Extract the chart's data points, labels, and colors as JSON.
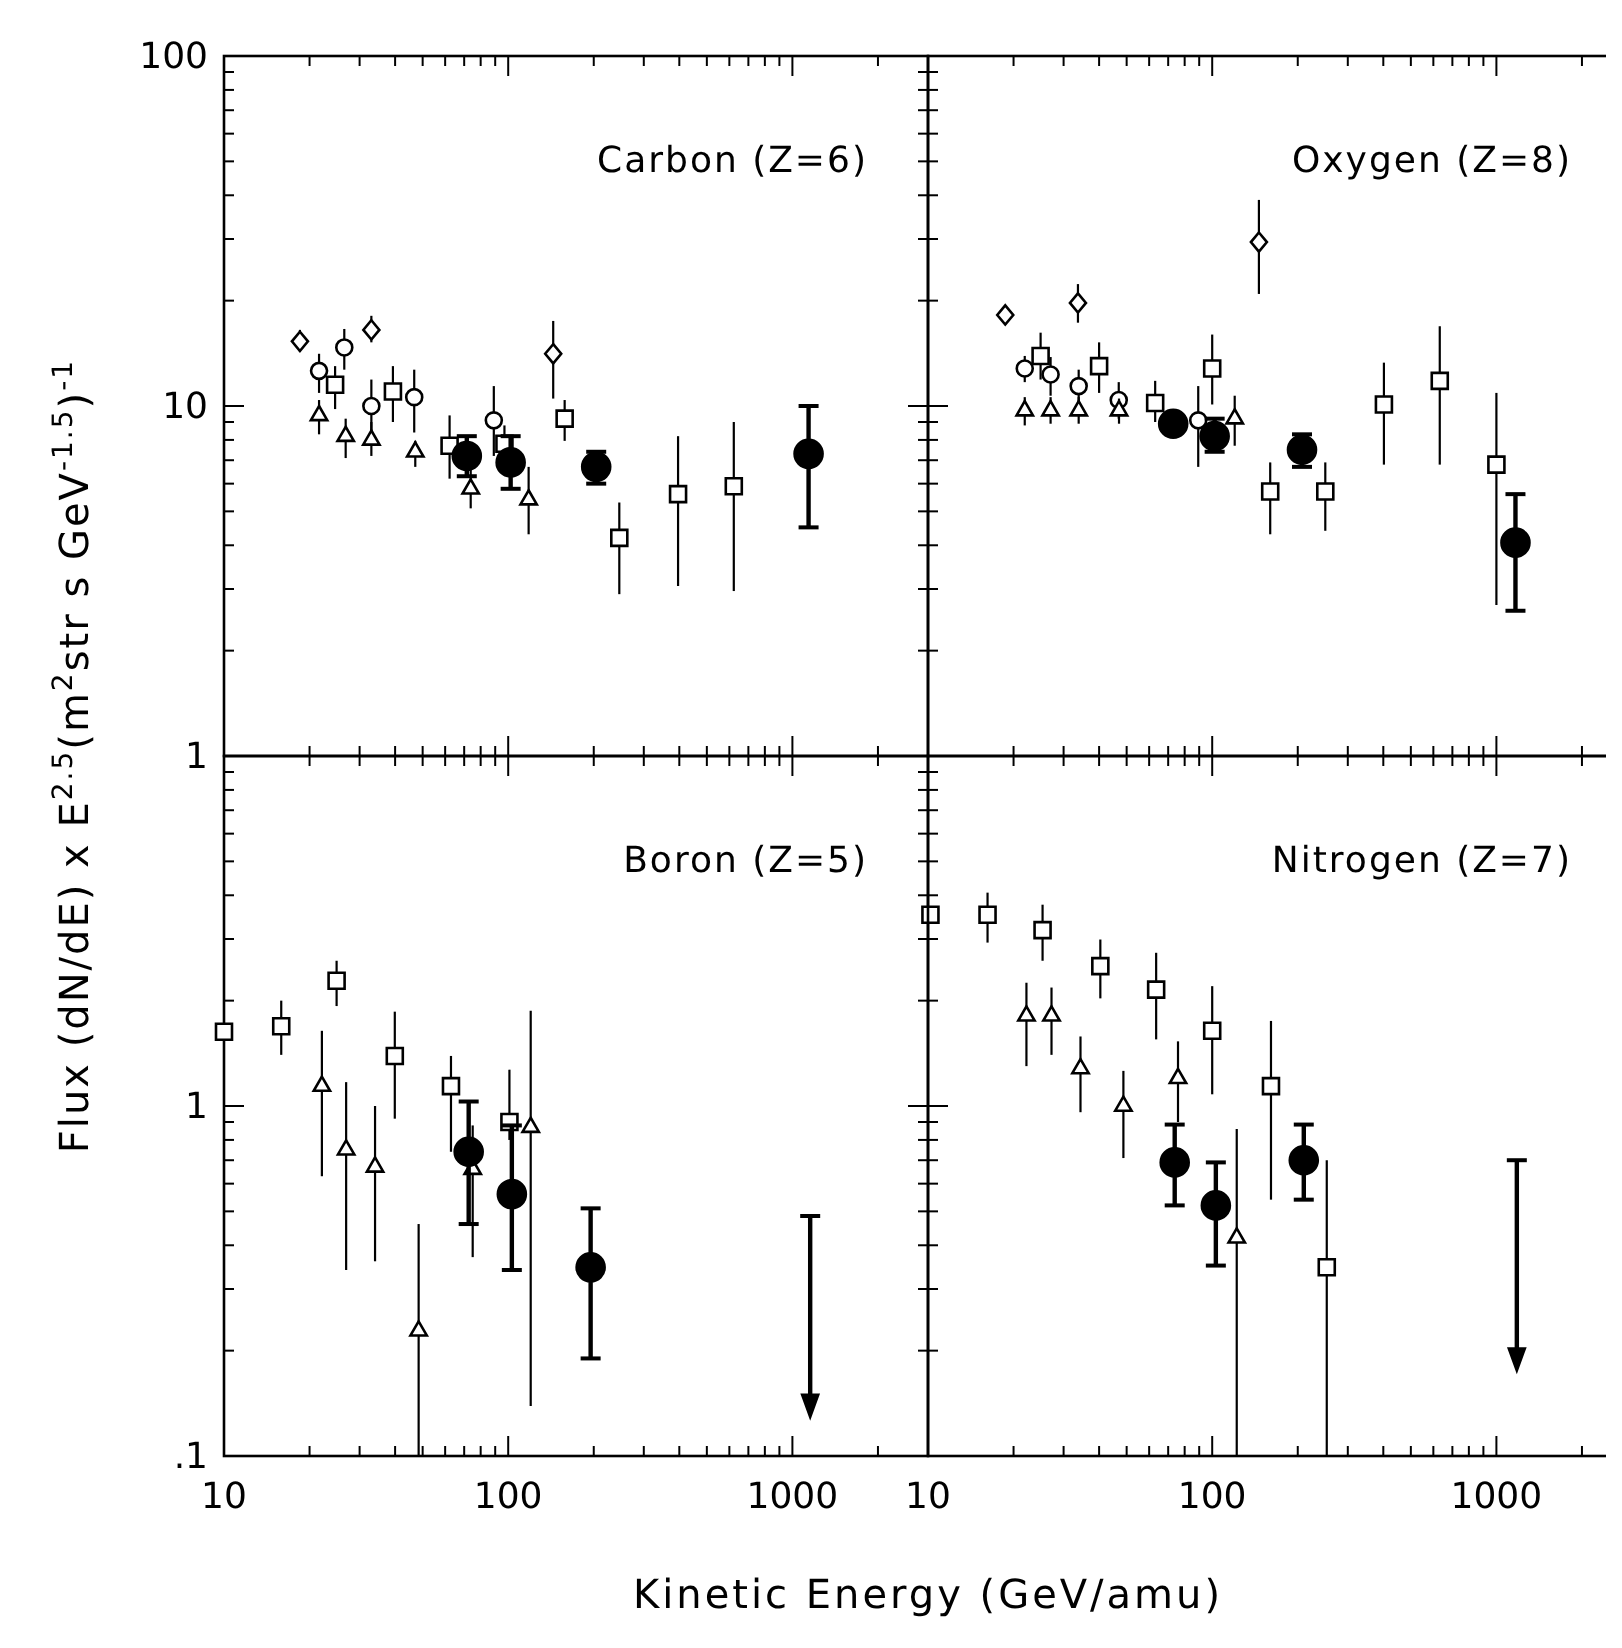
{
  "chart_data": [
    {
      "type": "scatter",
      "log": "xy",
      "title": "Carbon (Z=6)",
      "ylabel": "Flux (dN/dE) x E$^{2.5}$(m$^{2}$str s GeV$^{-1.5}$)$^{-1}$",
      "xlim": [
        10,
        3000
      ],
      "ylim": [
        1,
        100
      ],
      "tick_labels": "y",
      "xticks": [
        10,
        {
          "value": 20,
          "label": null
        },
        {
          "value": 30,
          "label": null
        },
        {
          "value": 40,
          "label": null
        },
        {
          "value": 50,
          "label": null
        },
        {
          "value": 60,
          "label": null
        },
        {
          "value": 70,
          "label": null
        },
        {
          "value": 80,
          "label": null
        },
        {
          "value": 90,
          "label": null
        },
        100,
        {
          "value": 200,
          "label": null
        },
        {
          "value": 300,
          "label": null
        },
        {
          "value": 400,
          "label": null
        },
        {
          "value": 500,
          "label": null
        },
        {
          "value": 600,
          "label": null
        },
        {
          "value": 700,
          "label": null
        },
        {
          "value": 800,
          "label": null
        },
        {
          "value": 900,
          "label": null
        },
        1000,
        {
          "value": 2000,
          "label": null
        }
      ],
      "yticks": [
        1,
        {
          "value": 2,
          "label": null
        },
        {
          "value": 3,
          "label": null
        },
        {
          "value": 4,
          "label": null
        },
        {
          "value": 5,
          "label": null
        },
        {
          "value": 6,
          "label": null
        },
        {
          "value": 7,
          "label": null
        },
        {
          "value": 8,
          "label": null
        },
        {
          "value": 9,
          "label": null
        },
        10,
        {
          "value": 20,
          "label": null
        },
        {
          "value": 30,
          "label": null
        },
        {
          "value": 40,
          "label": null
        },
        {
          "value": 50,
          "label": null
        },
        {
          "value": 60,
          "label": null
        },
        {
          "value": 70,
          "label": null
        },
        {
          "value": 80,
          "label": null
        },
        {
          "value": 90,
          "label": null
        },
        100
      ],
      "series": [
        {
          "color": "#000000",
          "marker": "diamond",
          "x": [
            18.5,
            33,
            144
          ],
          "values": [
            15.3,
            16.5,
            14.1
          ],
          "errors": [
            [
              14.3,
              16.5
            ],
            [
              15.2,
              18.1
            ],
            [
              10.5,
              17.5
            ]
          ]
        },
        {
          "color": "#000000",
          "marker": "circle",
          "x": [
            21.6,
            26.5,
            33,
            46.7,
            89
          ],
          "values": [
            12.6,
            14.7,
            10.0,
            10.6,
            9.1
          ],
          "errors": [
            [
              10.9,
              14.1
            ],
            [
              12.7,
              16.6
            ],
            [
              8.4,
              11.9
            ],
            [
              8.4,
              12.7
            ],
            [
              7.2,
              11.4
            ]
          ]
        },
        {
          "color": "#000000",
          "marker": "square",
          "x": [
            24.6,
            39.3,
            62.2,
            97,
            158,
            246,
            396,
            622
          ],
          "values": [
            11.5,
            11.0,
            7.7,
            7.8,
            9.2,
            4.2,
            5.6,
            5.9
          ],
          "errors": [
            [
              9.8,
              13.0
            ],
            [
              9.0,
              13.0
            ],
            [
              6.2,
              9.4
            ],
            [
              7.2,
              8.8
            ],
            [
              7.95,
              10.4
            ],
            [
              2.9,
              5.3
            ],
            [
              3.06,
              8.2
            ],
            [
              2.96,
              9.0
            ]
          ]
        },
        {
          "color": "#000000",
          "marker": "triangle",
          "x": [
            21.6,
            26.8,
            33,
            47.1,
            73.8,
            118
          ],
          "values": [
            9.4,
            8.2,
            8.0,
            7.4,
            5.8,
            5.4
          ],
          "errors": [
            [
              8.3,
              10.4
            ],
            [
              7.1,
              9.2
            ],
            [
              7.2,
              9.0
            ],
            [
              6.7,
              7.95
            ],
            [
              5.1,
              6.6
            ],
            [
              4.3,
              6.7
            ]
          ]
        },
        {
          "color": "#000000",
          "marker": "circle",
          "x": [
            71.5,
            102,
            204,
            1140
          ],
          "values": [
            7.2,
            6.9,
            6.7,
            7.3
          ],
          "errors": [
            [
              6.3,
              8.2
            ],
            [
              5.8,
              8.2
            ],
            [
              6.0,
              7.4
            ],
            [
              4.5,
              10.0
            ]
          ]
        }
      ]
    },
    {
      "type": "scatter",
      "log": "xy",
      "title": "Oxygen (Z=8)",
      "xlim": [
        10,
        3000
      ],
      "ylim": [
        1,
        100
      ],
      "tick_labels": false,
      "xticks": [
        10,
        {
          "value": 20,
          "label": null
        },
        {
          "value": 30,
          "label": null
        },
        {
          "value": 40,
          "label": null
        },
        {
          "value": 50,
          "label": null
        },
        {
          "value": 60,
          "label": null
        },
        {
          "value": 70,
          "label": null
        },
        {
          "value": 80,
          "label": null
        },
        {
          "value": 90,
          "label": null
        },
        100,
        {
          "value": 200,
          "label": null
        },
        {
          "value": 300,
          "label": null
        },
        {
          "value": 400,
          "label": null
        },
        {
          "value": 500,
          "label": null
        },
        {
          "value": 600,
          "label": null
        },
        {
          "value": 700,
          "label": null
        },
        {
          "value": 800,
          "label": null
        },
        {
          "value": 900,
          "label": null
        },
        1000,
        {
          "value": 2000,
          "label": null
        }
      ],
      "yticks": [
        1,
        {
          "value": 2,
          "label": null
        },
        {
          "value": 3,
          "label": null
        },
        {
          "value": 4,
          "label": null
        },
        {
          "value": 5,
          "label": null
        },
        {
          "value": 6,
          "label": null
        },
        {
          "value": 7,
          "label": null
        },
        {
          "value": 8,
          "label": null
        },
        {
          "value": 9,
          "label": null
        },
        10,
        {
          "value": 20,
          "label": null
        },
        {
          "value": 30,
          "label": null
        },
        {
          "value": 40,
          "label": null
        },
        {
          "value": 50,
          "label": null
        },
        {
          "value": 60,
          "label": null
        },
        {
          "value": 70,
          "label": null
        },
        {
          "value": 80,
          "label": null
        },
        {
          "value": 90,
          "label": null
        },
        100
      ],
      "series": [
        {
          "color": "#000000",
          "marker": "diamond",
          "x": [
            18.7,
            33.7,
            146
          ],
          "values": [
            18.2,
            19.7,
            29.4
          ],
          "errors": [
            [
              17.1,
              19.3
            ],
            [
              17.3,
              22.3
            ],
            [
              20.9,
              38.8
            ]
          ]
        },
        {
          "color": "#000000",
          "marker": "circle",
          "x": [
            21.9,
            27,
            33.9,
            46.9,
            89.3
          ],
          "values": [
            12.8,
            12.3,
            11.4,
            10.4,
            9.1
          ],
          "errors": [
            [
              11.7,
              13.9
            ],
            [
              10.7,
              13.8
            ],
            [
              10.0,
              12.7
            ],
            [
              9.2,
              11.7
            ],
            [
              6.7,
              11.4
            ]
          ]
        },
        {
          "color": "#000000",
          "marker": "square",
          "x": [
            24.9,
            40,
            63,
            100,
            160,
            250,
            402,
            632,
            1000
          ],
          "values": [
            13.9,
            13.0,
            10.2,
            12.8,
            5.7,
            5.7,
            10.1,
            11.8,
            6.8
          ],
          "errors": [
            [
              11.9,
              16.2
            ],
            [
              10.9,
              15.2
            ],
            [
              9.0,
              11.8
            ],
            [
              10.1,
              16.0
            ],
            [
              4.3,
              6.9
            ],
            [
              4.4,
              6.9
            ],
            [
              6.8,
              13.3
            ],
            [
              6.8,
              16.9
            ],
            [
              2.7,
              10.9
            ]
          ]
        },
        {
          "color": "#000000",
          "marker": "triangle",
          "x": [
            21.9,
            27,
            33.9,
            47,
            120
          ],
          "values": [
            9.7,
            9.7,
            9.7,
            9.7,
            9.2
          ],
          "errors": [
            [
              8.8,
              10.6
            ],
            [
              8.9,
              10.6
            ],
            [
              8.9,
              10.6
            ],
            [
              8.9,
              10.5
            ],
            [
              7.7,
              10.7
            ]
          ]
        },
        {
          "color": "#000000",
          "marker": "circle",
          "x": [
            72.9,
            102,
            207,
            1167
          ],
          "values": [
            8.9,
            8.2,
            7.5,
            4.07
          ],
          "errors": [
            null,
            [
              7.4,
              9.2
            ],
            [
              6.7,
              8.3
            ],
            [
              2.6,
              5.6
            ]
          ]
        }
      ]
    },
    {
      "type": "scatter",
      "log": "xy",
      "title": "Boron (Z=5)",
      "xlabel": "Kinetic Energy  (GeV/amu)",
      "xlim": [
        10,
        3000
      ],
      "ylim": [
        0.1,
        10
      ],
      "xticks": [
        10,
        {
          "value": 20,
          "label": null
        },
        {
          "value": 30,
          "label": null
        },
        {
          "value": 40,
          "label": null
        },
        {
          "value": 50,
          "label": null
        },
        {
          "value": 60,
          "label": null
        },
        {
          "value": 70,
          "label": null
        },
        {
          "value": 80,
          "label": null
        },
        {
          "value": 90,
          "label": null
        },
        100,
        {
          "value": 200,
          "label": null
        },
        {
          "value": 300,
          "label": null
        },
        {
          "value": 400,
          "label": null
        },
        {
          "value": 500,
          "label": null
        },
        {
          "value": 600,
          "label": null
        },
        {
          "value": 700,
          "label": null
        },
        {
          "value": 800,
          "label": null
        },
        {
          "value": 900,
          "label": null
        },
        1000,
        {
          "value": 2000,
          "label": null
        }
      ],
      "yticks": [
        {
          "value": 0.1,
          "label": ".1"
        },
        {
          "value": 0.2,
          "label": null
        },
        {
          "value": 0.3,
          "label": null
        },
        {
          "value": 0.4,
          "label": null
        },
        {
          "value": 0.5,
          "label": null
        },
        {
          "value": 0.6,
          "label": null
        },
        {
          "value": 0.7,
          "label": null
        },
        {
          "value": 0.8,
          "label": null
        },
        {
          "value": 0.9,
          "label": null
        },
        1,
        {
          "value": 2,
          "label": null
        },
        {
          "value": 3,
          "label": null
        },
        {
          "value": 4,
          "label": null
        },
        {
          "value": 5,
          "label": null
        },
        {
          "value": 6,
          "label": null
        },
        {
          "value": 7,
          "label": null
        },
        {
          "value": 8,
          "label": null
        },
        {
          "value": 9,
          "label": null
        },
        {
          "value": 10,
          "label": null
        }
      ],
      "series": [
        {
          "color": "#000000",
          "marker": "square",
          "x": [
            10,
            15.9,
            24.9,
            39.9,
            62.9,
            101
          ],
          "values": [
            1.63,
            1.69,
            2.28,
            1.39,
            1.14,
            0.9
          ],
          "errors": [
            null,
            [
              1.4,
              2.0
            ],
            [
              1.93,
              2.6
            ],
            [
              0.92,
              1.86
            ],
            [
              0.74,
              1.39
            ],
            [
              0.8,
              1.27
            ]
          ]
        },
        {
          "color": "#000000",
          "marker": "triangle",
          "x": [
            22.1,
            26.9,
            34,
            48.4,
            75,
            120
          ],
          "values": [
            1.14,
            0.75,
            0.67,
            0.228,
            0.66,
            0.87
          ],
          "errors": [
            [
              0.63,
              1.64
            ],
            [
              0.34,
              1.17
            ],
            [
              0.36,
              1.0
            ],
            [
              0.1,
              0.46
            ],
            [
              0.37,
              0.88
            ],
            [
              0.139,
              1.87
            ]
          ]
        },
        {
          "color": "#000000",
          "marker": "circle",
          "x": [
            72.6,
            103,
            195
          ],
          "values": [
            0.74,
            0.56,
            0.346
          ],
          "errors": [
            [
              0.46,
              1.03
            ],
            [
              0.34,
              0.88
            ],
            [
              0.19,
              0.51
            ]
          ]
        },
        {
          "color": "#000000",
          "marker": "triangle",
          "x": [
            1155
          ],
          "values": [
            0.14
          ],
          "errors": [
            [
              0.14,
              0.485
            ]
          ]
        }
      ]
    },
    {
      "type": "scatter",
      "log": "xy",
      "title": "Nitrogen (Z=7)",
      "xlim": [
        10,
        3000
      ],
      "ylim": [
        0.1,
        10
      ],
      "tick_labels": "x",
      "xticks": [
        10,
        {
          "value": 20,
          "label": null
        },
        {
          "value": 30,
          "label": null
        },
        {
          "value": 40,
          "label": null
        },
        {
          "value": 50,
          "label": null
        },
        {
          "value": 60,
          "label": null
        },
        {
          "value": 70,
          "label": null
        },
        {
          "value": 80,
          "label": null
        },
        {
          "value": 90,
          "label": null
        },
        100,
        {
          "value": 200,
          "label": null
        },
        {
          "value": 300,
          "label": null
        },
        {
          "value": 400,
          "label": null
        },
        {
          "value": 500,
          "label": null
        },
        {
          "value": 600,
          "label": null
        },
        {
          "value": 700,
          "label": null
        },
        {
          "value": 800,
          "label": null
        },
        {
          "value": 900,
          "label": null
        },
        1000,
        {
          "value": 2000,
          "label": null
        }
      ],
      "yticks": [
        {
          "value": 0.1,
          "label": null
        },
        {
          "value": 0.2,
          "label": null
        },
        {
          "value": 0.3,
          "label": null
        },
        {
          "value": 0.4,
          "label": null
        },
        {
          "value": 0.5,
          "label": null
        },
        {
          "value": 0.6,
          "label": null
        },
        {
          "value": 0.7,
          "label": null
        },
        {
          "value": 0.8,
          "label": null
        },
        {
          "value": 0.9,
          "label": null
        },
        {
          "value": 1,
          "label": null
        },
        {
          "value": 2,
          "label": null
        },
        {
          "value": 3,
          "label": null
        },
        {
          "value": 4,
          "label": null
        },
        {
          "value": 5,
          "label": null
        },
        {
          "value": 6,
          "label": null
        },
        {
          "value": 7,
          "label": null
        },
        {
          "value": 8,
          "label": null
        },
        {
          "value": 9,
          "label": null
        },
        {
          "value": 10,
          "label": null
        }
      ],
      "series": [
        {
          "color": "#000000",
          "marker": "square",
          "x": [
            10.2,
            16.2,
            25.3,
            40.4,
            63.5,
            100,
            161,
            253
          ],
          "values": [
            3.52,
            3.52,
            3.18,
            2.51,
            2.15,
            1.64,
            1.14,
            0.346
          ],
          "errors": [
            null,
            [
              2.93,
              4.07
            ],
            [
              2.6,
              3.76
            ],
            [
              2.03,
              2.99
            ],
            [
              1.55,
              2.74
            ],
            [
              1.08,
              2.2
            ],
            [
              0.54,
              1.75
            ],
            [
              0.1,
              0.7
            ]
          ]
        },
        {
          "color": "#000000",
          "marker": "triangle",
          "x": [
            22.2,
            27.2,
            34.4,
            48.7,
            75.8,
            122
          ],
          "values": [
            1.81,
            1.81,
            1.28,
            1.0,
            1.2,
            0.42
          ],
          "errors": [
            [
              1.3,
              2.25
            ],
            [
              1.4,
              2.18
            ],
            [
              0.96,
              1.58
            ],
            [
              0.71,
              1.26
            ],
            [
              0.9,
              1.53
            ],
            [
              0.1,
              0.86
            ]
          ]
        },
        {
          "color": "#000000",
          "marker": "circle",
          "x": [
            73.8,
            103,
            210
          ],
          "values": [
            0.69,
            0.52,
            0.7
          ],
          "errors": [
            [
              0.52,
              0.885
            ],
            [
              0.35,
              0.69
            ],
            [
              0.54,
              0.885
            ]
          ]
        },
        {
          "color": "#000000",
          "marker": "triangle",
          "x": [
            1180
          ],
          "values": [
            0.19
          ],
          "errors": [
            [
              0.19,
              0.7
            ]
          ]
        }
      ]
    }
  ]
}
